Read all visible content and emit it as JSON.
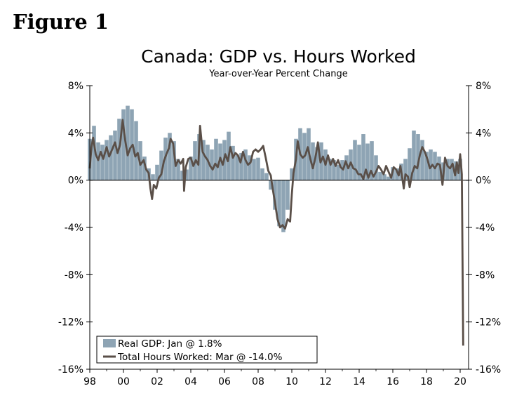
{
  "figure_label": "Figure 1",
  "colors": {
    "gdp": "#8ea4b4",
    "hours": "#5a4f48",
    "axis": "#000000"
  },
  "chart_data": {
    "type": "bar+line",
    "title": "Canada: GDP vs. Hours Worked",
    "subtitle": "Year-over-Year Percent Change",
    "xlabel": "",
    "ylabel": "",
    "xlim": [
      1998,
      2020.5
    ],
    "ylim": [
      -16,
      8
    ],
    "left_ticks": [
      {
        "v": 8,
        "label": "8%"
      },
      {
        "v": 4,
        "label": "4%"
      },
      {
        "v": 0,
        "label": "0%"
      },
      {
        "v": -4,
        "label": "-4%"
      },
      {
        "v": -8,
        "label": "-8%"
      },
      {
        "v": -12,
        "label": "-12%"
      },
      {
        "v": -16,
        "label": "-16%"
      }
    ],
    "right_ticks": [
      {
        "v": 8,
        "label": "8%"
      },
      {
        "v": 4,
        "label": "4%"
      },
      {
        "v": 0,
        "label": "0%"
      },
      {
        "v": -4,
        "label": "-4%"
      },
      {
        "v": -8,
        "label": "-8%"
      },
      {
        "v": -12,
        "label": "-12%"
      },
      {
        "v": -16,
        "label": "-16%"
      }
    ],
    "x_ticks": [
      {
        "v": 1998,
        "label": "98"
      },
      {
        "v": 2000,
        "label": "00"
      },
      {
        "v": 2002,
        "label": "02"
      },
      {
        "v": 2004,
        "label": "04"
      },
      {
        "v": 2006,
        "label": "06"
      },
      {
        "v": 2008,
        "label": "08"
      },
      {
        "v": 2010,
        "label": "10"
      },
      {
        "v": 2012,
        "label": "12"
      },
      {
        "v": 2014,
        "label": "14"
      },
      {
        "v": 2016,
        "label": "16"
      },
      {
        "v": 2018,
        "label": "18"
      },
      {
        "v": 2020,
        "label": "20"
      }
    ],
    "legend": [
      {
        "name": "Real GDP: Jan @ 1.8%",
        "kind": "bar"
      },
      {
        "name": "Total Hours Worked: Mar @ -14.0%",
        "kind": "line"
      }
    ],
    "legend_position": "bottom-left",
    "series": [
      {
        "name": "Real GDP",
        "kind": "bar",
        "points": [
          [
            1998.0,
            3.5
          ],
          [
            1998.25,
            4.6
          ],
          [
            1998.5,
            3.2
          ],
          [
            1998.75,
            3.0
          ],
          [
            1999.0,
            3.4
          ],
          [
            1999.25,
            3.8
          ],
          [
            1999.5,
            4.2
          ],
          [
            1999.75,
            5.2
          ],
          [
            2000.0,
            6.0
          ],
          [
            2000.25,
            6.3
          ],
          [
            2000.5,
            6.0
          ],
          [
            2000.75,
            5.0
          ],
          [
            2001.0,
            3.3
          ],
          [
            2001.25,
            2.0
          ],
          [
            2001.5,
            1.0
          ],
          [
            2001.75,
            0.5
          ],
          [
            2002.0,
            1.3
          ],
          [
            2002.25,
            2.5
          ],
          [
            2002.5,
            3.6
          ],
          [
            2002.75,
            4.0
          ],
          [
            2003.0,
            3.3
          ],
          [
            2003.25,
            1.8
          ],
          [
            2003.5,
            0.8
          ],
          [
            2003.75,
            0.9
          ],
          [
            2004.0,
            2.0
          ],
          [
            2004.25,
            3.3
          ],
          [
            2004.5,
            3.9
          ],
          [
            2004.75,
            3.4
          ],
          [
            2005.0,
            3.0
          ],
          [
            2005.25,
            2.6
          ],
          [
            2005.5,
            3.5
          ],
          [
            2005.75,
            3.1
          ],
          [
            2006.0,
            3.4
          ],
          [
            2006.25,
            4.1
          ],
          [
            2006.5,
            2.9
          ],
          [
            2006.75,
            2.1
          ],
          [
            2007.0,
            2.3
          ],
          [
            2007.25,
            2.6
          ],
          [
            2007.5,
            2.1
          ],
          [
            2007.75,
            1.8
          ],
          [
            2008.0,
            1.9
          ],
          [
            2008.25,
            1.0
          ],
          [
            2008.5,
            0.6
          ],
          [
            2008.75,
            -0.8
          ],
          [
            2009.0,
            -2.5
          ],
          [
            2009.25,
            -3.9
          ],
          [
            2009.5,
            -4.4
          ],
          [
            2009.75,
            -2.5
          ],
          [
            2010.0,
            1.0
          ],
          [
            2010.25,
            3.5
          ],
          [
            2010.5,
            4.4
          ],
          [
            2010.75,
            4.0
          ],
          [
            2011.0,
            4.4
          ],
          [
            2011.25,
            3.2
          ],
          [
            2011.5,
            2.8
          ],
          [
            2011.75,
            3.2
          ],
          [
            2012.0,
            2.6
          ],
          [
            2012.25,
            1.8
          ],
          [
            2012.5,
            1.7
          ],
          [
            2012.75,
            1.3
          ],
          [
            2013.0,
            1.7
          ],
          [
            2013.25,
            2.1
          ],
          [
            2013.5,
            2.6
          ],
          [
            2013.75,
            3.4
          ],
          [
            2014.0,
            3.0
          ],
          [
            2014.25,
            3.9
          ],
          [
            2014.5,
            3.1
          ],
          [
            2014.75,
            3.3
          ],
          [
            2015.0,
            2.1
          ],
          [
            2015.25,
            0.7
          ],
          [
            2015.5,
            0.5
          ],
          [
            2015.75,
            0.3
          ],
          [
            2016.0,
            1.1
          ],
          [
            2016.25,
            1.0
          ],
          [
            2016.5,
            1.4
          ],
          [
            2016.75,
            1.8
          ],
          [
            2017.0,
            2.7
          ],
          [
            2017.25,
            4.2
          ],
          [
            2017.5,
            3.9
          ],
          [
            2017.75,
            3.4
          ],
          [
            2018.0,
            2.4
          ],
          [
            2018.25,
            2.6
          ],
          [
            2018.5,
            2.4
          ],
          [
            2018.75,
            2.0
          ],
          [
            2019.0,
            1.5
          ],
          [
            2019.25,
            1.8
          ],
          [
            2019.5,
            1.8
          ],
          [
            2019.75,
            1.6
          ],
          [
            2020.0,
            1.8
          ]
        ]
      },
      {
        "name": "Total Hours Worked",
        "kind": "line",
        "points": [
          [
            1998.0,
            1.0
          ],
          [
            1998.1,
            2.8
          ],
          [
            1998.2,
            3.6
          ],
          [
            1998.35,
            2.2
          ],
          [
            1998.5,
            1.7
          ],
          [
            1998.65,
            2.4
          ],
          [
            1998.8,
            1.8
          ],
          [
            1999.0,
            2.8
          ],
          [
            1999.15,
            2.0
          ],
          [
            1999.3,
            2.5
          ],
          [
            1999.5,
            3.2
          ],
          [
            1999.65,
            2.3
          ],
          [
            1999.8,
            3.0
          ],
          [
            1999.95,
            5.1
          ],
          [
            2000.1,
            3.4
          ],
          [
            2000.25,
            2.1
          ],
          [
            2000.4,
            2.7
          ],
          [
            2000.55,
            3.0
          ],
          [
            2000.7,
            2.0
          ],
          [
            2000.85,
            2.3
          ],
          [
            2001.0,
            1.3
          ],
          [
            2001.2,
            1.7
          ],
          [
            2001.35,
            0.9
          ],
          [
            2001.5,
            0.6
          ],
          [
            2001.6,
            -0.7
          ],
          [
            2001.7,
            -1.6
          ],
          [
            2001.8,
            -0.4
          ],
          [
            2001.95,
            -0.7
          ],
          [
            2002.1,
            0.2
          ],
          [
            2002.25,
            0.5
          ],
          [
            2002.4,
            1.6
          ],
          [
            2002.55,
            2.2
          ],
          [
            2002.7,
            2.7
          ],
          [
            2002.8,
            3.5
          ],
          [
            2002.95,
            3.1
          ],
          [
            2003.1,
            1.2
          ],
          [
            2003.25,
            1.7
          ],
          [
            2003.4,
            1.4
          ],
          [
            2003.55,
            1.8
          ],
          [
            2003.6,
            -0.9
          ],
          [
            2003.7,
            1.1
          ],
          [
            2003.85,
            1.8
          ],
          [
            2004.0,
            1.9
          ],
          [
            2004.15,
            1.2
          ],
          [
            2004.3,
            1.7
          ],
          [
            2004.45,
            1.3
          ],
          [
            2004.55,
            4.6
          ],
          [
            2004.7,
            2.4
          ],
          [
            2004.85,
            2.0
          ],
          [
            2005.0,
            1.7
          ],
          [
            2005.15,
            1.2
          ],
          [
            2005.3,
            0.9
          ],
          [
            2005.45,
            1.4
          ],
          [
            2005.6,
            1.1
          ],
          [
            2005.75,
            1.9
          ],
          [
            2005.9,
            1.3
          ],
          [
            2006.05,
            2.2
          ],
          [
            2006.2,
            1.6
          ],
          [
            2006.35,
            2.8
          ],
          [
            2006.5,
            1.9
          ],
          [
            2006.65,
            2.3
          ],
          [
            2006.8,
            2.1
          ],
          [
            2006.95,
            1.5
          ],
          [
            2007.1,
            2.4
          ],
          [
            2007.25,
            1.7
          ],
          [
            2007.4,
            1.3
          ],
          [
            2007.55,
            1.5
          ],
          [
            2007.7,
            2.4
          ],
          [
            2007.85,
            2.6
          ],
          [
            2008.0,
            2.4
          ],
          [
            2008.15,
            2.6
          ],
          [
            2008.3,
            2.9
          ],
          [
            2008.45,
            1.9
          ],
          [
            2008.6,
            0.8
          ],
          [
            2008.75,
            0.4
          ],
          [
            2008.85,
            -0.6
          ],
          [
            2009.0,
            -1.9
          ],
          [
            2009.15,
            -3.3
          ],
          [
            2009.3,
            -4.0
          ],
          [
            2009.45,
            -3.8
          ],
          [
            2009.6,
            -4.1
          ],
          [
            2009.75,
            -3.3
          ],
          [
            2009.9,
            -3.5
          ],
          [
            2010.0,
            -1.2
          ],
          [
            2010.1,
            0.6
          ],
          [
            2010.25,
            1.8
          ],
          [
            2010.35,
            3.3
          ],
          [
            2010.5,
            2.2
          ],
          [
            2010.65,
            1.9
          ],
          [
            2010.8,
            2.1
          ],
          [
            2010.95,
            2.8
          ],
          [
            2011.1,
            1.8
          ],
          [
            2011.25,
            1.0
          ],
          [
            2011.4,
            1.9
          ],
          [
            2011.55,
            3.2
          ],
          [
            2011.7,
            1.5
          ],
          [
            2011.85,
            2.0
          ],
          [
            2012.0,
            1.3
          ],
          [
            2012.15,
            2.1
          ],
          [
            2012.3,
            1.3
          ],
          [
            2012.45,
            1.8
          ],
          [
            2012.6,
            1.2
          ],
          [
            2012.75,
            1.7
          ],
          [
            2012.9,
            1.1
          ],
          [
            2013.05,
            0.9
          ],
          [
            2013.2,
            1.6
          ],
          [
            2013.35,
            1.0
          ],
          [
            2013.5,
            1.5
          ],
          [
            2013.65,
            1.0
          ],
          [
            2013.8,
            0.9
          ],
          [
            2013.95,
            0.5
          ],
          [
            2014.1,
            0.5
          ],
          [
            2014.25,
            0.1
          ],
          [
            2014.4,
            0.9
          ],
          [
            2014.55,
            0.2
          ],
          [
            2014.7,
            0.8
          ],
          [
            2014.85,
            0.3
          ],
          [
            2015.0,
            0.7
          ],
          [
            2015.15,
            1.2
          ],
          [
            2015.3,
            0.9
          ],
          [
            2015.45,
            0.5
          ],
          [
            2015.6,
            1.2
          ],
          [
            2015.75,
            0.7
          ],
          [
            2015.9,
            0.2
          ],
          [
            2016.05,
            1.1
          ],
          [
            2016.2,
            0.9
          ],
          [
            2016.35,
            0.4
          ],
          [
            2016.45,
            1.2
          ],
          [
            2016.55,
            0.3
          ],
          [
            2016.65,
            -0.7
          ],
          [
            2016.75,
            0.5
          ],
          [
            2016.9,
            0.3
          ],
          [
            2017.0,
            -0.6
          ],
          [
            2017.15,
            0.6
          ],
          [
            2017.3,
            1.2
          ],
          [
            2017.45,
            1.0
          ],
          [
            2017.6,
            2.1
          ],
          [
            2017.75,
            2.8
          ],
          [
            2017.9,
            2.4
          ],
          [
            2018.05,
            1.8
          ],
          [
            2018.2,
            1.0
          ],
          [
            2018.35,
            1.3
          ],
          [
            2018.5,
            1.0
          ],
          [
            2018.65,
            1.4
          ],
          [
            2018.8,
            1.3
          ],
          [
            2018.95,
            -0.4
          ],
          [
            2019.1,
            1.9
          ],
          [
            2019.25,
            1.2
          ],
          [
            2019.4,
            1.0
          ],
          [
            2019.55,
            1.4
          ],
          [
            2019.7,
            0.4
          ],
          [
            2019.8,
            1.5
          ],
          [
            2019.9,
            0.6
          ],
          [
            2020.0,
            2.2
          ],
          [
            2020.1,
            0.5
          ],
          [
            2020.18,
            -14.0
          ]
        ]
      }
    ]
  }
}
